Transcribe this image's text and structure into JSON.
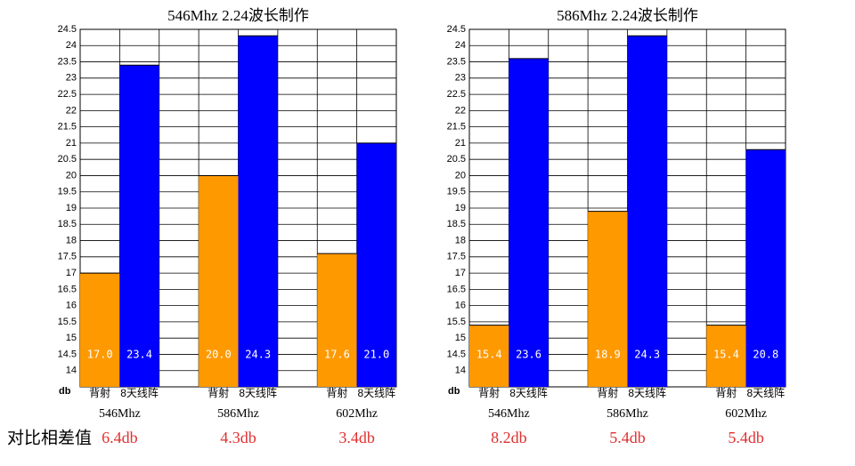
{
  "row_label": "对比相差值",
  "chart_data": [
    {
      "type": "bar",
      "title": "546Mhz 2.24波长制作",
      "y_label": "db",
      "categories": [
        "546Mhz",
        "586Mhz",
        "602Mhz"
      ],
      "series": [
        {
          "name": "背射",
          "color": "#ff9900",
          "values": [
            17.0,
            20.0,
            17.6
          ],
          "value_labels": [
            "17.0",
            "20.0",
            "17.6"
          ]
        },
        {
          "name": "8天线阵",
          "color": "#0000ff",
          "values": [
            23.4,
            24.3,
            21.0
          ],
          "value_labels": [
            "23.4",
            "24.3",
            "21.0"
          ]
        }
      ],
      "annotations": [
        "6.4db",
        "4.3db",
        "3.4db"
      ],
      "ylim": [
        13.5,
        24.5
      ],
      "yticks": [
        14,
        14.5,
        15,
        15.5,
        16,
        16.5,
        17,
        17.5,
        18,
        18.5,
        19,
        19.5,
        20,
        20.5,
        21,
        21.5,
        22,
        22.5,
        23,
        23.5,
        24,
        24.5
      ],
      "grid": true
    },
    {
      "type": "bar",
      "title": "586Mhz 2.24波长制作",
      "y_label": "db",
      "categories": [
        "546Mhz",
        "586Mhz",
        "602Mhz"
      ],
      "series": [
        {
          "name": "背射",
          "color": "#ff9900",
          "values": [
            15.4,
            18.9,
            15.4
          ],
          "value_labels": [
            "15.4",
            "18.9",
            "15.4"
          ]
        },
        {
          "name": "8天线阵",
          "color": "#0000ff",
          "values": [
            23.6,
            24.3,
            20.8
          ],
          "value_labels": [
            "23.6",
            "24.3",
            "20.8"
          ]
        }
      ],
      "annotations": [
        "8.2db",
        "5.4db",
        "5.4db"
      ],
      "ylim": [
        13.5,
        24.5
      ],
      "yticks": [
        14,
        14.5,
        15,
        15.5,
        16,
        16.5,
        17,
        17.5,
        18,
        18.5,
        19,
        19.5,
        20,
        20.5,
        21,
        21.5,
        22,
        22.5,
        23,
        23.5,
        24,
        24.5
      ],
      "grid": true
    }
  ]
}
